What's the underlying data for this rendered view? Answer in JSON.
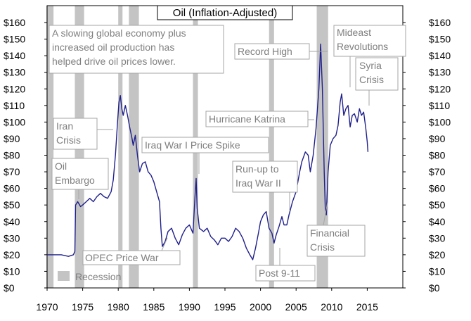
{
  "chart_data": {
    "type": "line",
    "title": "Oil (Inflation-Adjusted)",
    "xlim": [
      1970,
      2020
    ],
    "ylim": [
      0,
      160
    ],
    "x_ticks": [
      1970,
      1975,
      1980,
      1985,
      1990,
      1995,
      2000,
      2005,
      2010,
      2015
    ],
    "y_ticks": [
      0,
      10,
      20,
      30,
      40,
      50,
      60,
      70,
      80,
      90,
      100,
      110,
      120,
      130,
      140,
      150,
      160
    ],
    "y_tick_labels": [
      "$0",
      "$10",
      "$20",
      "$30",
      "$40",
      "$50",
      "$60",
      "$70",
      "$80",
      "$90",
      "$100",
      "$110",
      "$120",
      "$130",
      "$140",
      "$150",
      "$160"
    ],
    "grid": false,
    "colors": {
      "line": "#1f1f8c",
      "recession": "#c4c4c4",
      "annotation": "#7f7f7f"
    },
    "legend": {
      "label": "Recession",
      "placement": "bottom-left"
    },
    "recessions": [
      [
        1969.9,
        1970.9
      ],
      [
        1973.9,
        1975.2
      ],
      [
        1980.0,
        1980.6
      ],
      [
        1981.5,
        1982.9
      ],
      [
        1990.5,
        1991.2
      ],
      [
        2001.2,
        2001.9
      ],
      [
        2007.9,
        2009.5
      ]
    ],
    "series": [
      {
        "values": [
          [
            1970.0,
            20
          ],
          [
            1971.0,
            20
          ],
          [
            1972.0,
            20
          ],
          [
            1973.0,
            19
          ],
          [
            1973.7,
            20
          ],
          [
            1973.9,
            22
          ],
          [
            1974.0,
            50
          ],
          [
            1974.3,
            52
          ],
          [
            1974.7,
            49
          ],
          [
            1975.0,
            50
          ],
          [
            1975.5,
            52
          ],
          [
            1976.0,
            54
          ],
          [
            1976.5,
            52
          ],
          [
            1977.0,
            55
          ],
          [
            1977.5,
            57
          ],
          [
            1978.0,
            55
          ],
          [
            1978.5,
            54
          ],
          [
            1979.0,
            58
          ],
          [
            1979.3,
            65
          ],
          [
            1979.6,
            80
          ],
          [
            1979.9,
            100
          ],
          [
            1980.1,
            112
          ],
          [
            1980.3,
            116
          ],
          [
            1980.5,
            108
          ],
          [
            1980.7,
            104
          ],
          [
            1981.0,
            110
          ],
          [
            1981.3,
            104
          ],
          [
            1981.6,
            97
          ],
          [
            1981.9,
            91
          ],
          [
            1982.1,
            86
          ],
          [
            1982.4,
            92
          ],
          [
            1982.7,
            80
          ],
          [
            1983.0,
            70
          ],
          [
            1983.4,
            75
          ],
          [
            1983.8,
            76
          ],
          [
            1984.2,
            70
          ],
          [
            1984.6,
            68
          ],
          [
            1985.0,
            64
          ],
          [
            1985.4,
            58
          ],
          [
            1985.8,
            52
          ],
          [
            1986.0,
            36
          ],
          [
            1986.2,
            25
          ],
          [
            1986.6,
            28
          ],
          [
            1987.0,
            34
          ],
          [
            1987.5,
            36
          ],
          [
            1988.0,
            30
          ],
          [
            1988.5,
            26
          ],
          [
            1989.0,
            32
          ],
          [
            1989.5,
            36
          ],
          [
            1990.0,
            38
          ],
          [
            1990.5,
            33
          ],
          [
            1990.8,
            56
          ],
          [
            1990.95,
            66
          ],
          [
            1991.1,
            48
          ],
          [
            1991.4,
            36
          ],
          [
            1992.0,
            34
          ],
          [
            1992.5,
            36
          ],
          [
            1993.0,
            31
          ],
          [
            1993.5,
            29
          ],
          [
            1994.0,
            26
          ],
          [
            1994.5,
            30
          ],
          [
            1995.0,
            30
          ],
          [
            1995.5,
            28
          ],
          [
            1996.0,
            31
          ],
          [
            1996.5,
            36
          ],
          [
            1997.0,
            34
          ],
          [
            1997.5,
            30
          ],
          [
            1998.0,
            24
          ],
          [
            1998.5,
            20
          ],
          [
            1998.9,
            17
          ],
          [
            1999.3,
            24
          ],
          [
            1999.7,
            33
          ],
          [
            2000.0,
            40
          ],
          [
            2000.4,
            44
          ],
          [
            2000.8,
            46
          ],
          [
            2001.2,
            36
          ],
          [
            2001.6,
            33
          ],
          [
            2001.9,
            27
          ],
          [
            2002.2,
            32
          ],
          [
            2002.6,
            37
          ],
          [
            2003.0,
            43
          ],
          [
            2003.3,
            38
          ],
          [
            2003.7,
            38
          ],
          [
            2004.0,
            44
          ],
          [
            2004.5,
            52
          ],
          [
            2005.0,
            58
          ],
          [
            2005.5,
            70
          ],
          [
            2005.8,
            76
          ],
          [
            2006.3,
            82
          ],
          [
            2006.7,
            80
          ],
          [
            2007.0,
            70
          ],
          [
            2007.4,
            80
          ],
          [
            2007.8,
            96
          ],
          [
            2008.2,
            120
          ],
          [
            2008.45,
            147
          ],
          [
            2008.7,
            120
          ],
          [
            2008.95,
            70
          ],
          [
            2009.1,
            48
          ],
          [
            2009.25,
            44
          ],
          [
            2009.5,
            70
          ],
          [
            2009.8,
            86
          ],
          [
            2010.2,
            90
          ],
          [
            2010.6,
            92
          ],
          [
            2010.9,
            98
          ],
          [
            2011.2,
            112
          ],
          [
            2011.4,
            117
          ],
          [
            2011.7,
            104
          ],
          [
            2012.0,
            108
          ],
          [
            2012.3,
            110
          ],
          [
            2012.6,
            97
          ],
          [
            2012.9,
            104
          ],
          [
            2013.2,
            105
          ],
          [
            2013.6,
            100
          ],
          [
            2013.9,
            108
          ],
          [
            2014.2,
            104
          ],
          [
            2014.5,
            106
          ],
          [
            2014.8,
            96
          ],
          [
            2015.0,
            88
          ],
          [
            2015.1,
            82
          ]
        ]
      }
    ],
    "annotations": [
      {
        "id": "slowing",
        "lines": [
          "A slowing global economy plus",
          "increased oil production has",
          "helped drive oil prices lower."
        ]
      },
      {
        "id": "record-high",
        "lines": [
          "Record High"
        ]
      },
      {
        "id": "mideast",
        "lines": [
          "Mideast",
          "Revolutions"
        ]
      },
      {
        "id": "syria",
        "lines": [
          "Syria",
          "Crisis"
        ]
      },
      {
        "id": "iran",
        "lines": [
          "Iran",
          "Crisis"
        ]
      },
      {
        "id": "iraq-war-i",
        "lines": [
          "Iraq War I Price Spike"
        ]
      },
      {
        "id": "katrina",
        "lines": [
          "Hurricane Katrina"
        ]
      },
      {
        "id": "oil-embargo",
        "lines": [
          "Oil",
          "Embargo"
        ]
      },
      {
        "id": "runup-iraq-ii",
        "lines": [
          "Run-up to",
          "Iraq War II"
        ]
      },
      {
        "id": "financial",
        "lines": [
          "Financial",
          "Crisis"
        ]
      },
      {
        "id": "opec",
        "lines": [
          "OPEC Price War"
        ]
      },
      {
        "id": "post-911",
        "lines": [
          "Post 9-11"
        ]
      }
    ]
  }
}
